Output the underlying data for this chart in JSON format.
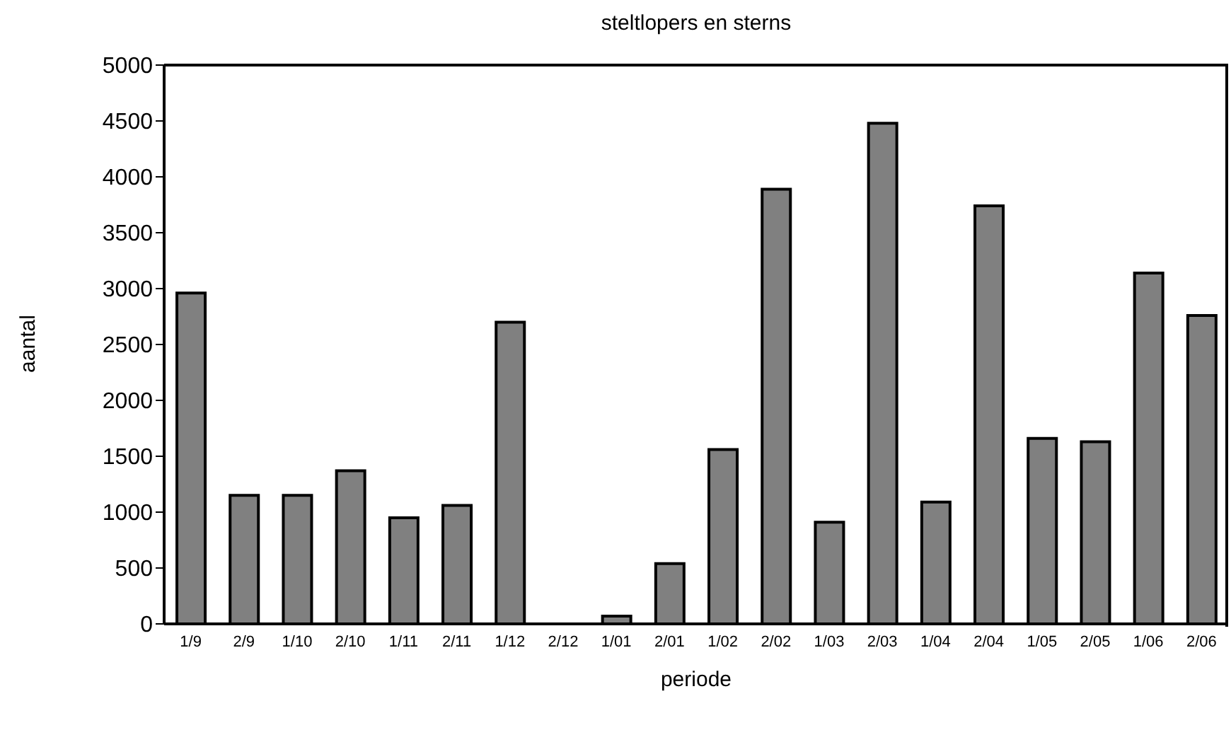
{
  "chart_data": {
    "type": "bar",
    "title": "steltlopers en sterns",
    "xlabel": "periode",
    "ylabel": "aantal",
    "categories": [
      "1/9",
      "2/9",
      "1/10",
      "2/10",
      "1/11",
      "2/11",
      "1/12",
      "2/12",
      "1/01",
      "2/01",
      "1/02",
      "2/02",
      "1/03",
      "2/03",
      "1/04",
      "2/04",
      "1/05",
      "2/05",
      "1/06",
      "2/06"
    ],
    "values": [
      2960,
      1150,
      1150,
      1370,
      950,
      1060,
      2700,
      0,
      70,
      540,
      1560,
      3890,
      910,
      4480,
      1090,
      3740,
      1660,
      1630,
      3140,
      2760
    ],
    "color": "#808080",
    "ylim": [
      0,
      5000
    ],
    "yticks": [
      0,
      500,
      1000,
      1500,
      2000,
      2500,
      3000,
      3500,
      4000,
      4500,
      5000
    ],
    "grid": false,
    "legend": false
  }
}
